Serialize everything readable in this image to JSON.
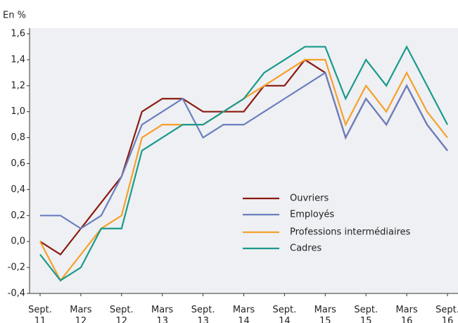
{
  "chart_data": {
    "type": "line",
    "y_label": "En %",
    "categories": [
      "Sept. 11",
      null,
      "Mars 12",
      null,
      "Sept. 12",
      null,
      "Mars 13",
      null,
      "Sept. 13",
      null,
      "Mars 14",
      null,
      "Sept. 14",
      null,
      "Mars 15",
      null,
      "Sept. 15",
      null,
      "Mars 16",
      null,
      "Sept. 16"
    ],
    "series": [
      {
        "name": "Ouvriers",
        "color": "#8b1a10",
        "values": [
          0.0,
          -0.1,
          0.1,
          0.3,
          0.5,
          1.0,
          1.1,
          1.1,
          1.0,
          1.0,
          1.0,
          1.2,
          1.2,
          1.4,
          1.3,
          0.8,
          1.1,
          0.9,
          1.2,
          0.9,
          0.7
        ]
      },
      {
        "name": "Employés",
        "color": "#6b7fbf",
        "values": [
          0.2,
          0.2,
          0.1,
          0.2,
          0.5,
          0.9,
          1.0,
          1.1,
          0.8,
          0.9,
          0.9,
          1.0,
          1.1,
          1.2,
          1.3,
          0.8,
          1.1,
          0.9,
          1.2,
          0.9,
          0.7
        ]
      },
      {
        "name": "Professions intermédiaires",
        "color": "#f5a02a",
        "values": [
          0.0,
          -0.3,
          -0.1,
          0.1,
          0.2,
          0.8,
          0.9,
          0.9,
          0.9,
          1.0,
          1.1,
          1.2,
          1.3,
          1.4,
          1.4,
          0.9,
          1.2,
          1.0,
          1.3,
          1.0,
          0.8
        ]
      },
      {
        "name": "Cadres",
        "color": "#1a9a8c",
        "values": [
          -0.1,
          -0.3,
          -0.2,
          0.1,
          0.1,
          0.7,
          0.8,
          0.9,
          0.9,
          1.0,
          1.1,
          1.3,
          1.4,
          1.5,
          1.5,
          1.1,
          1.4,
          1.2,
          1.5,
          1.2,
          0.9
        ]
      }
    ],
    "ylim": [
      -0.4,
      1.6
    ],
    "yticks": [
      {
        "value": -0.4,
        "label": "-0,4"
      },
      {
        "value": -0.2,
        "label": "-0,2"
      },
      {
        "value": 0,
        "label": "0,0"
      },
      {
        "value": 0.2,
        "label": "0,2"
      },
      {
        "value": 0.4,
        "label": "0,4"
      },
      {
        "value": 0.6,
        "label": "0,6"
      },
      {
        "value": 0.8,
        "label": "0,8"
      },
      {
        "value": 1.0,
        "label": "1,0"
      },
      {
        "value": 1.2,
        "label": "1,2"
      },
      {
        "value": 1.4,
        "label": "1,4"
      },
      {
        "value": 1.6,
        "label": "1,6"
      }
    ],
    "grid": false,
    "legend": "lower-right"
  }
}
